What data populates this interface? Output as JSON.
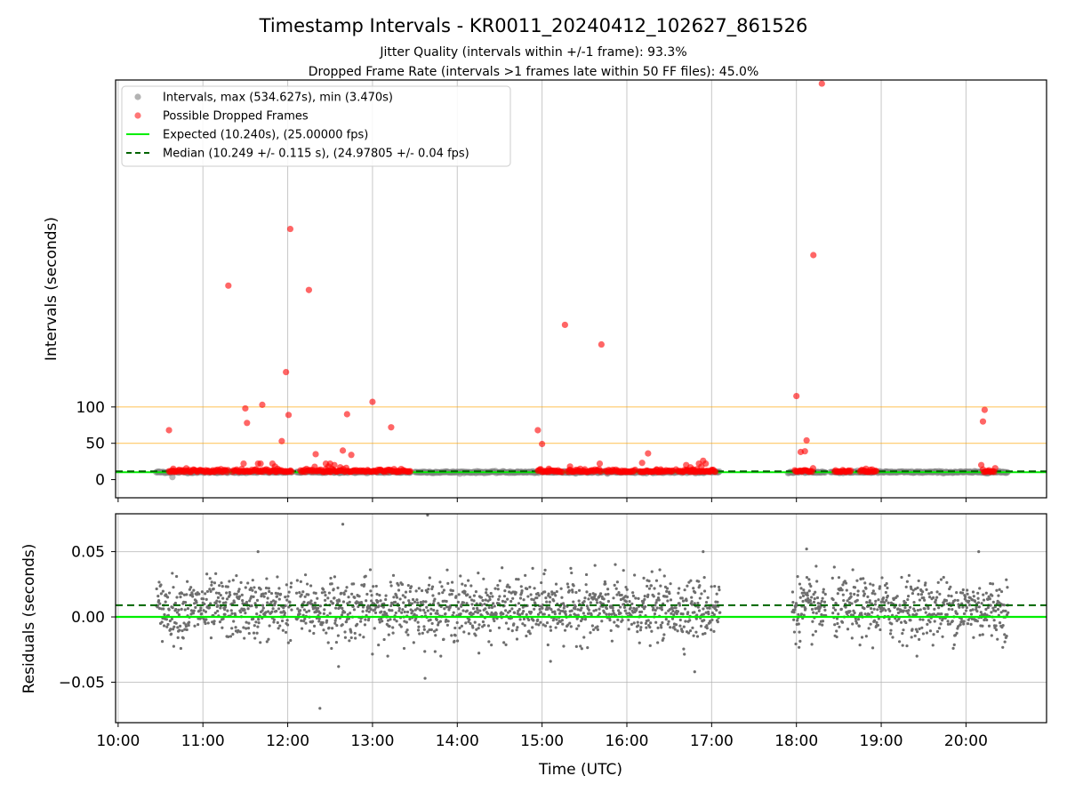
{
  "colors": {
    "background": "#ffffff",
    "grid": "#b0b0b0",
    "interval_points": "#808080",
    "dropped_points": "#ff0000",
    "expected_line": "#00ee00",
    "median_line": "#006400",
    "threshold_lines": "#ffa500",
    "residual_points": "#6e6e6e"
  },
  "chart_data": {
    "title": "Timestamp Intervals - KR0011_20240412_102627_861526",
    "subtitle_1": "Jitter Quality (intervals within +/-1 frame): 93.3%",
    "subtitle_2": "Dropped Frame Rate (intervals >1 frames late within 50 FF files): 45.0%",
    "xlabel": "Time (UTC)",
    "x_tick_labels": [
      "10:00",
      "11:00",
      "12:00",
      "13:00",
      "14:00",
      "15:00",
      "16:00",
      "17:00",
      "18:00",
      "19:00",
      "20:00"
    ],
    "x_tick_hours": [
      10,
      11,
      12,
      13,
      14,
      15,
      16,
      17,
      18,
      19,
      20
    ],
    "x_range_hours": [
      9.97,
      20.95
    ],
    "top": {
      "type": "scatter",
      "ylabel": "Intervals (seconds)",
      "y_tick_labels": [
        "0",
        "50",
        "100"
      ],
      "y_tick_values": [
        0,
        50,
        100
      ],
      "threshold_lines": [
        10.24,
        50,
        100
      ],
      "ylim": [
        -25,
        550
      ],
      "expected_value": 10.24,
      "median_value": 10.249,
      "legend_placement": "upper-left",
      "legend": [
        {
          "label": "Intervals, max (534.627s), min (3.470s)",
          "kind": "dot",
          "color": "#a0a0a0"
        },
        {
          "label": "Possible Dropped Frames",
          "kind": "dot",
          "color": "#ff5555"
        },
        {
          "label": "Expected (10.240s), (25.00000 fps)",
          "kind": "line",
          "color": "#00ee00"
        },
        {
          "label": "Median (10.249 +/- 0.115 s), (24.97805 +/- 0.04 fps)",
          "kind": "dashed",
          "color": "#006400"
        }
      ],
      "normal_segments_hours": [
        [
          10.45,
          12.05
        ],
        [
          12.1,
          13.45
        ],
        [
          13.5,
          15.05
        ],
        [
          15.05,
          17.1
        ],
        [
          17.9,
          18.35
        ],
        [
          18.4,
          20.5
        ]
      ],
      "dropped_points": [
        [
          10.6,
          68
        ],
        [
          10.65,
          15
        ],
        [
          11.3,
          267
        ],
        [
          11.48,
          22
        ],
        [
          11.5,
          98
        ],
        [
          11.52,
          78
        ],
        [
          11.7,
          103
        ],
        [
          11.65,
          22
        ],
        [
          11.68,
          22
        ],
        [
          11.82,
          22
        ],
        [
          11.85,
          18
        ],
        [
          11.88,
          15
        ],
        [
          11.93,
          53
        ],
        [
          11.98,
          148
        ],
        [
          12.01,
          89
        ],
        [
          12.03,
          345
        ],
        [
          12.25,
          261
        ],
        [
          12.33,
          35
        ],
        [
          12.45,
          22
        ],
        [
          12.48,
          18
        ],
        [
          12.5,
          22
        ],
        [
          12.55,
          20
        ],
        [
          12.65,
          40
        ],
        [
          12.7,
          90
        ],
        [
          12.75,
          34
        ],
        [
          12.62,
          17
        ],
        [
          13.0,
          107
        ],
        [
          13.22,
          72
        ],
        [
          13.3,
          12
        ],
        [
          14.95,
          68
        ],
        [
          15.0,
          49
        ],
        [
          15.08,
          15
        ],
        [
          15.27,
          213
        ],
        [
          15.33,
          18
        ],
        [
          15.45,
          15
        ],
        [
          15.7,
          186
        ],
        [
          15.68,
          22
        ],
        [
          16.18,
          23
        ],
        [
          16.25,
          36
        ],
        [
          16.35,
          14
        ],
        [
          16.4,
          14
        ],
        [
          16.58,
          14
        ],
        [
          16.7,
          20
        ],
        [
          16.75,
          17
        ],
        [
          16.78,
          14
        ],
        [
          16.85,
          22
        ],
        [
          16.9,
          26
        ],
        [
          16.93,
          22
        ],
        [
          16.88,
          18
        ],
        [
          17.0,
          12
        ],
        [
          18.0,
          115
        ],
        [
          18.05,
          38
        ],
        [
          18.1,
          39
        ],
        [
          18.12,
          54
        ],
        [
          18.2,
          309
        ],
        [
          18.3,
          545
        ],
        [
          18.82,
          15
        ],
        [
          20.18,
          20
        ],
        [
          20.2,
          80
        ],
        [
          20.22,
          96
        ]
      ],
      "dropped_bands_hours": [
        [
          10.6,
          11.3
        ],
        [
          11.35,
          12.05
        ],
        [
          12.15,
          13.45
        ],
        [
          14.95,
          15.25
        ],
        [
          15.3,
          15.7
        ],
        [
          15.75,
          16.1
        ],
        [
          16.15,
          16.55
        ],
        [
          16.6,
          17.05
        ],
        [
          17.98,
          18.2
        ],
        [
          18.45,
          18.65
        ],
        [
          18.75,
          18.95
        ],
        [
          20.2,
          20.35
        ]
      ]
    },
    "bottom": {
      "type": "scatter",
      "ylabel": "Residuals (seconds)",
      "y_tick_labels": [
        "0.05",
        "0.00",
        "−0.05"
      ],
      "y_tick_values": [
        0.05,
        0.0,
        -0.05
      ],
      "ylim": [
        -0.081,
        0.079
      ],
      "expected_value": 0.0,
      "median_value": 0.009,
      "gap_hours": [
        [
          12.05,
          12.1
        ],
        [
          17.1,
          17.95
        ],
        [
          18.35,
          18.42
        ]
      ],
      "outliers": [
        [
          12.65,
          0.071
        ],
        [
          12.38,
          -0.07
        ],
        [
          13.62,
          -0.047
        ],
        [
          13.65,
          0.078
        ],
        [
          12.6,
          -0.038
        ],
        [
          15.1,
          -0.034
        ],
        [
          16.8,
          -0.042
        ],
        [
          18.12,
          0.052
        ],
        [
          20.15,
          0.05
        ],
        [
          16.9,
          0.05
        ],
        [
          11.65,
          0.05
        ]
      ]
    }
  }
}
